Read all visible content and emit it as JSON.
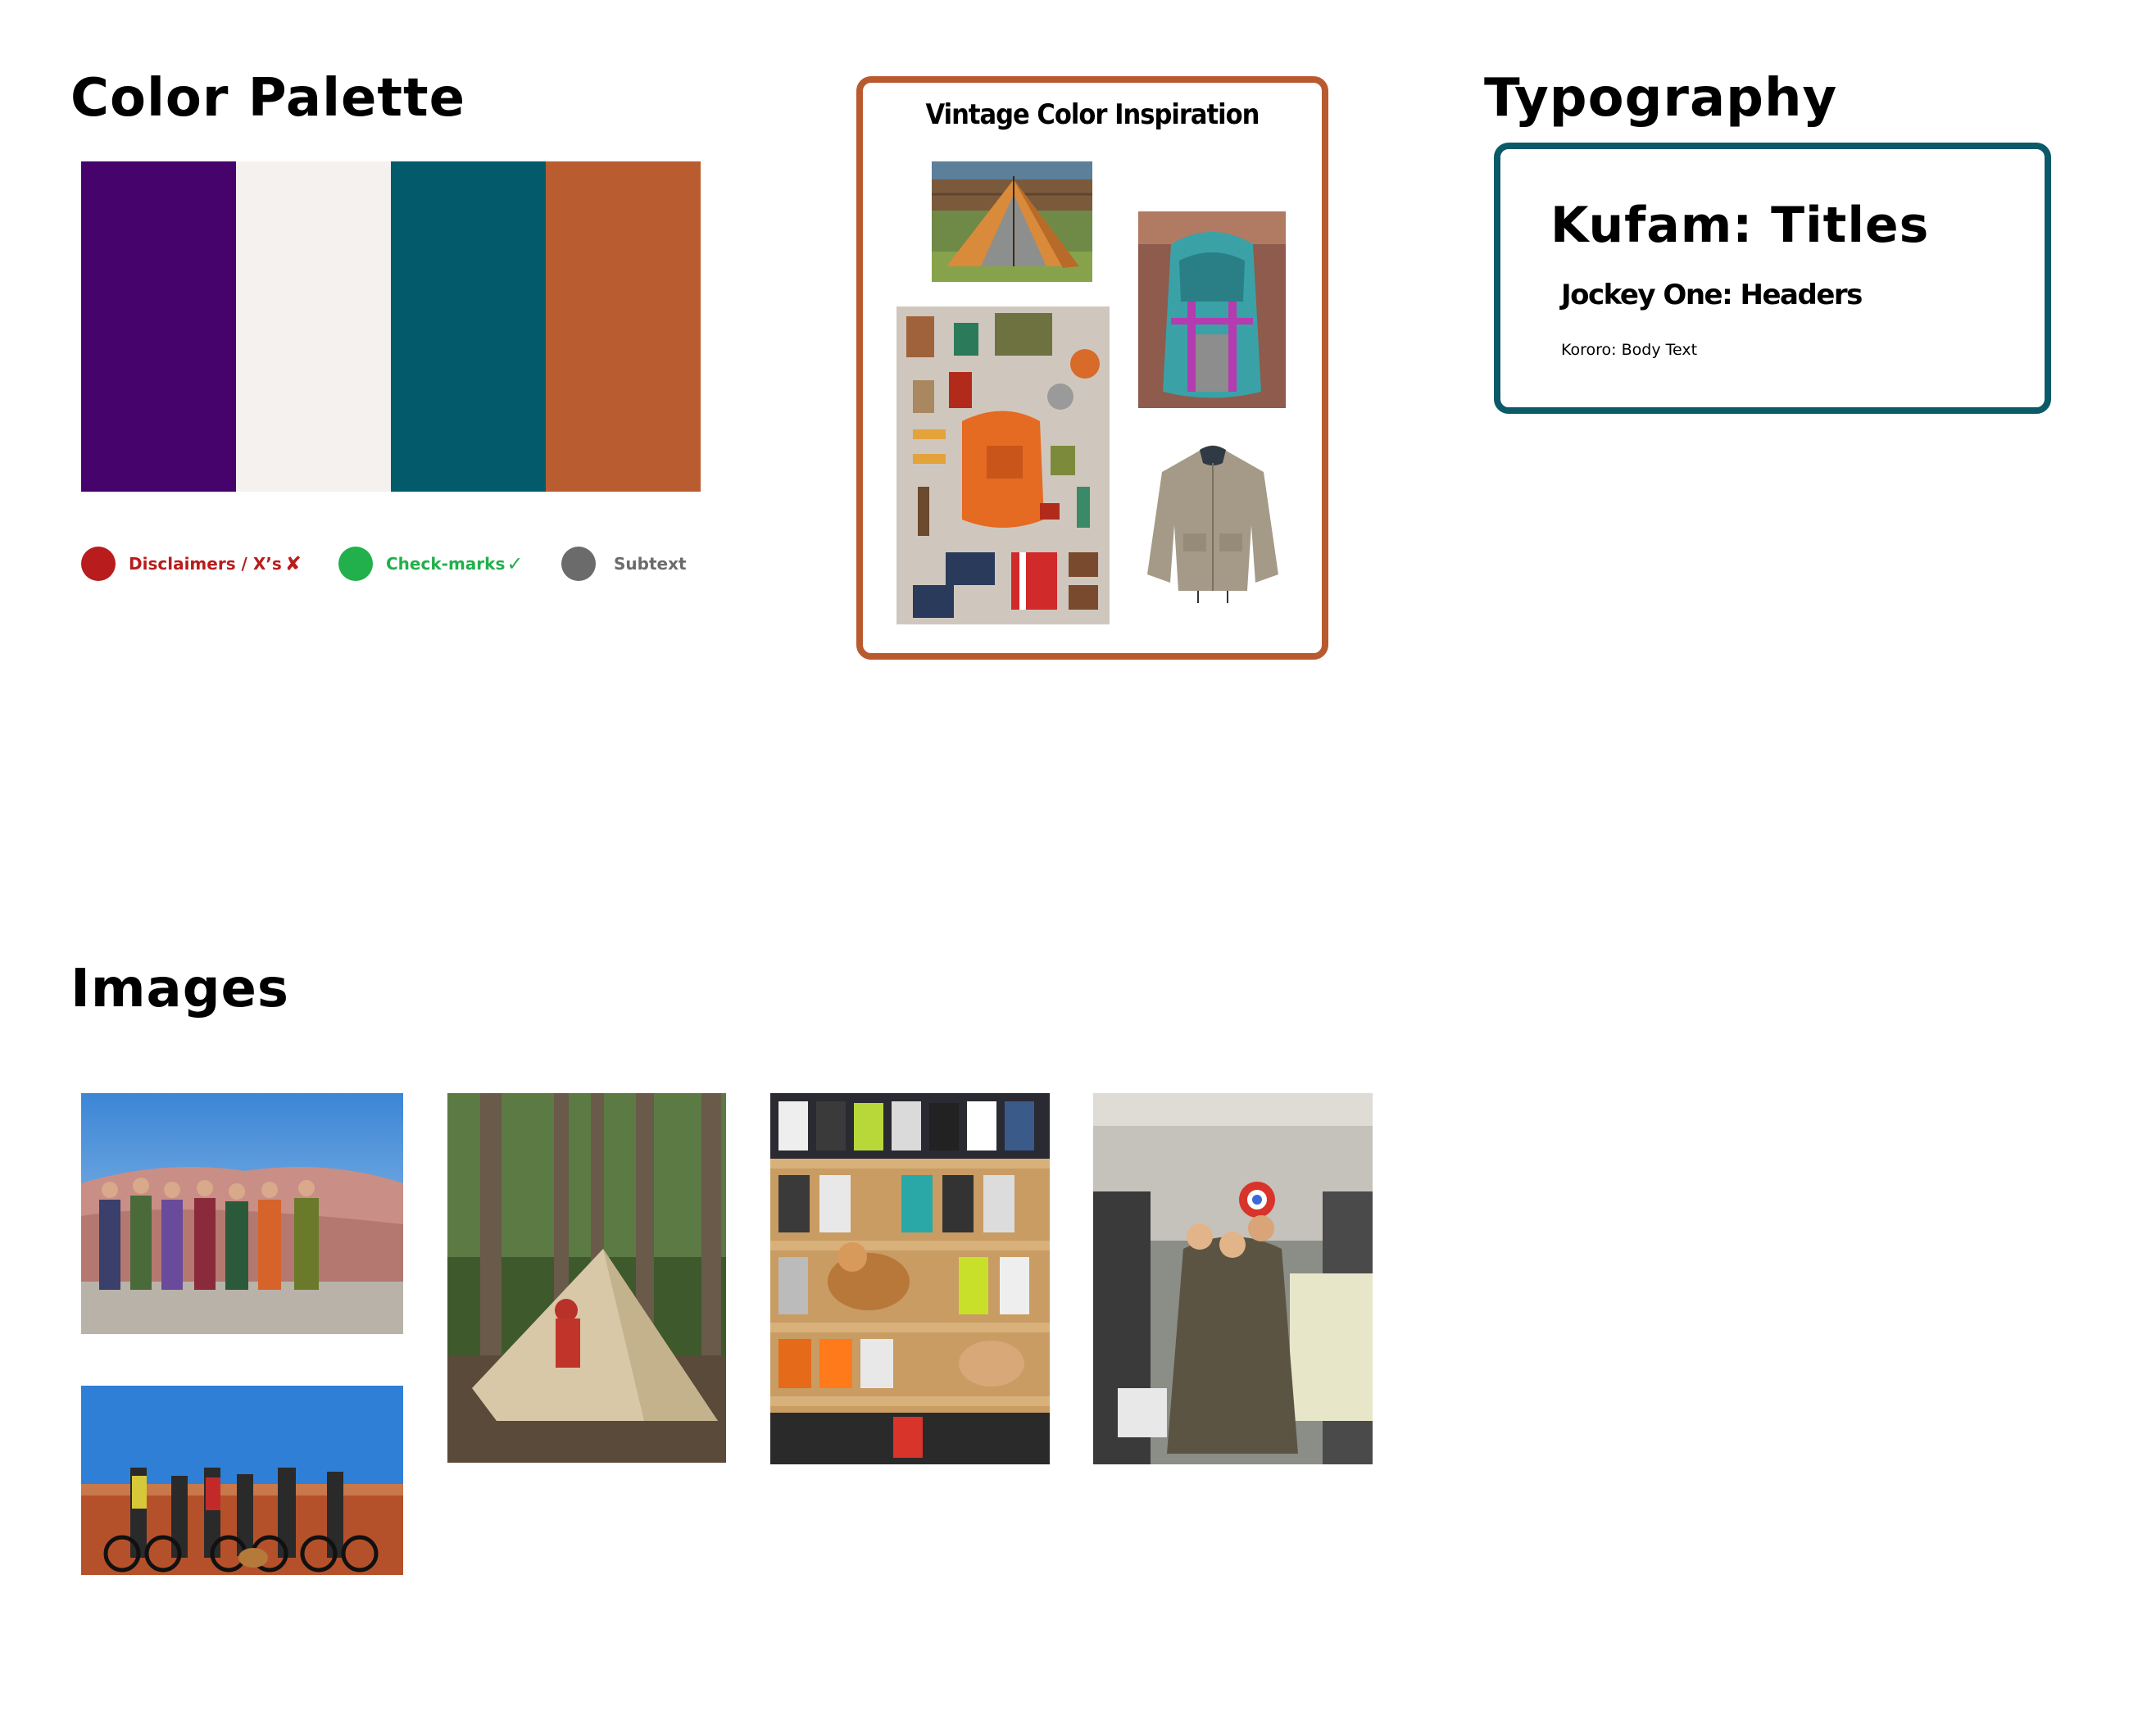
{
  "palette": {
    "title": "Color Palette",
    "swatches": [
      {
        "name": "purple",
        "hex": "#45036b"
      },
      {
        "name": "off-white",
        "hex": "#f4f1ee"
      },
      {
        "name": "teal",
        "hex": "#035a6b"
      },
      {
        "name": "rust",
        "hex": "#b95d31"
      }
    ],
    "legend": [
      {
        "label": "Disclaimers / X’s",
        "color": "#b81c1c",
        "glyph": "✘",
        "icon": "x-mark-icon"
      },
      {
        "label": "Check-marks",
        "color": "#21b04b",
        "glyph": "✓",
        "icon": "check-mark-icon"
      },
      {
        "label": "Subtext",
        "color": "#6b6b6b",
        "glyph": "",
        "icon": ""
      }
    ]
  },
  "inspiration": {
    "title": "Vintage Color Inspiration",
    "border_color": "#b95a2e",
    "images": [
      "orange-tent-photo",
      "teal-backpack-photo",
      "camping-gear-flatlay-photo",
      "khaki-jacket-photo"
    ]
  },
  "typography": {
    "title": "Typography",
    "border_color": "#0b5a6a",
    "samples": {
      "titles": "Kufam: Titles",
      "headers": "Jockey One: Headers",
      "body": "Kororo: Body Text"
    }
  },
  "images": {
    "title": "Images",
    "photos": [
      "group-desert-photo",
      "bikes-desert-photo",
      "forest-tent-photo",
      "ski-boots-dogs-photo",
      "sleeping-bag-shop-photo"
    ]
  }
}
